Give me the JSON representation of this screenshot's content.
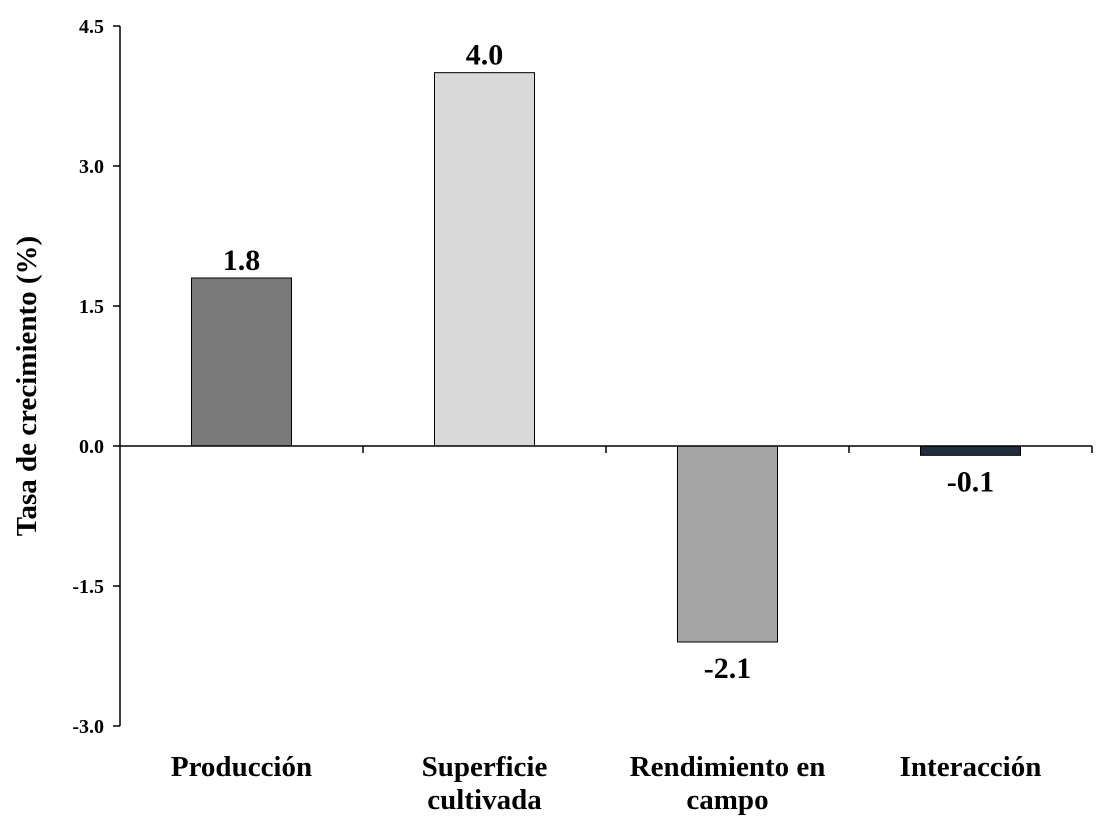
{
  "chart_data": {
    "type": "bar",
    "title": "",
    "xlabel": "",
    "ylabel": "Tasa de crecimiento (%)",
    "ylim": [
      -3.0,
      4.5
    ],
    "yticks": [
      "4.5",
      "3.0",
      "1.5",
      "0.0",
      "-1.5",
      "-3.0"
    ],
    "ytick_values": [
      4.5,
      3.0,
      1.5,
      0.0,
      -1.5,
      -3.0
    ],
    "grid": false,
    "legend": "none",
    "categories": [
      [
        "Producción"
      ],
      [
        "Superficie",
        "cultivada"
      ],
      [
        "Rendimiento en",
        "campo"
      ],
      [
        "Interacción"
      ]
    ],
    "values": [
      1.8,
      4.0,
      -2.1,
      -0.1
    ],
    "data_labels": [
      "1.8",
      "4.0",
      "-2.1",
      "-0.1"
    ],
    "colors": [
      "#7a7a7a",
      "#d9d9d9",
      "#a6a6a6",
      "#1f2d3d"
    ]
  }
}
